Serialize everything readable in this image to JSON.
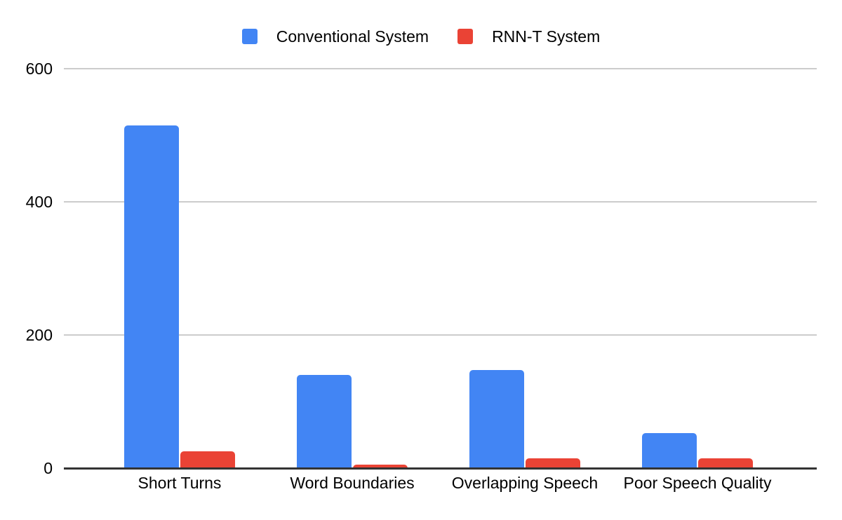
{
  "chart_data": {
    "type": "bar",
    "title": "",
    "xlabel": "",
    "ylabel": "",
    "categories": [
      "Short Turns",
      "Word Boundaries",
      "Overlapping Speech",
      "Poor Speech Quality"
    ],
    "series": [
      {
        "name": "Conventional System",
        "color": "#4285F4",
        "values": [
          515,
          140,
          147,
          53
        ]
      },
      {
        "name": "RNN-T System",
        "color": "#EA4335",
        "values": [
          25,
          5,
          15,
          15
        ]
      }
    ],
    "yticks": [
      0,
      200,
      400,
      600
    ],
    "ylim": [
      0,
      600
    ],
    "grid": true,
    "legend_position": "top",
    "colors": {
      "gridline": "#cccccc",
      "axis_line": "#333333",
      "text": "#000000",
      "background": "#ffffff"
    }
  }
}
